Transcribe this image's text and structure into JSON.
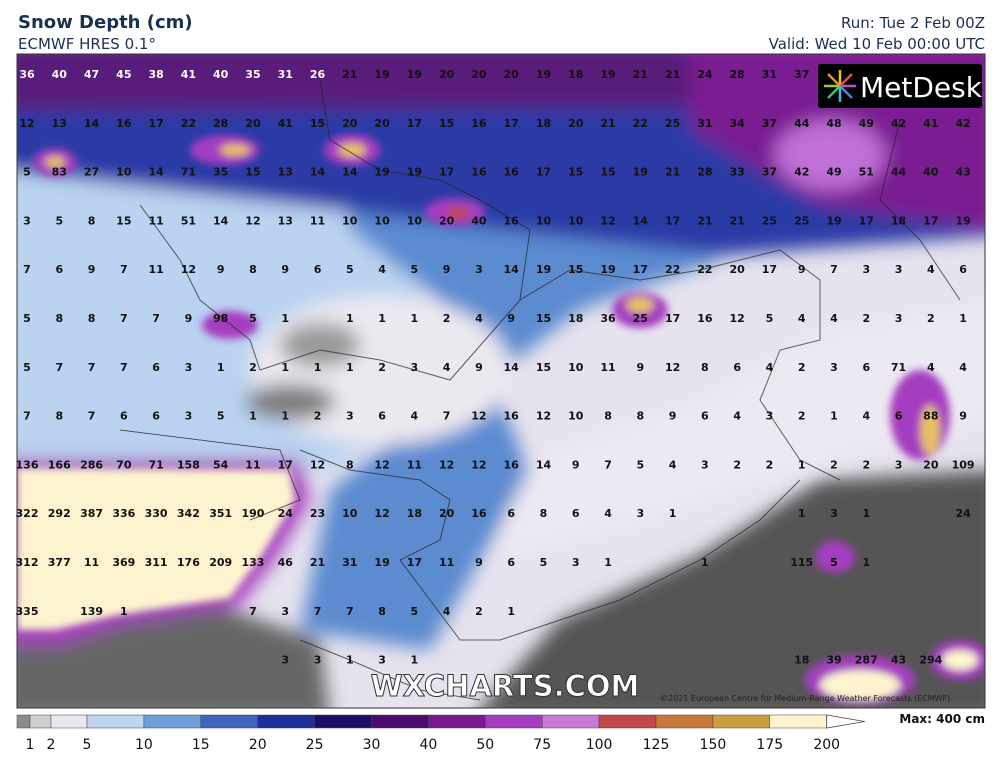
{
  "header": {
    "title": "Snow Depth (cm)",
    "subtitle": "ECMWF HRES 0.1°",
    "run": "Run: Tue 2 Feb 00Z",
    "valid": "Valid: Wed 10 Feb 00:00 UTC"
  },
  "logo": "MetDesk",
  "watermark": "WXCHARTS.COM",
  "copyright": "©2021 European Centre for Medium-Range Weather Forecasts (ECMWF)",
  "map": {
    "grid": [
      [
        36,
        40,
        47,
        45,
        38,
        41,
        40,
        35,
        31,
        26,
        21,
        19,
        19,
        20,
        20,
        20,
        19,
        18,
        19,
        21,
        21,
        24,
        28,
        31,
        37,
        null,
        null,
        null,
        null,
        null
      ],
      [
        12,
        13,
        14,
        16,
        17,
        22,
        28,
        20,
        41,
        15,
        20,
        20,
        17,
        15,
        16,
        17,
        18,
        20,
        21,
        22,
        25,
        31,
        34,
        37,
        44,
        48,
        49,
        42,
        41,
        42
      ],
      [
        5,
        83,
        27,
        10,
        14,
        71,
        35,
        15,
        13,
        14,
        14,
        19,
        19,
        17,
        16,
        16,
        17,
        15,
        15,
        19,
        21,
        28,
        33,
        37,
        42,
        49,
        51,
        44,
        40,
        43
      ],
      [
        3,
        5,
        8,
        15,
        11,
        51,
        14,
        12,
        13,
        11,
        10,
        10,
        10,
        20,
        40,
        16,
        10,
        10,
        12,
        14,
        17,
        21,
        21,
        25,
        25,
        19,
        17,
        18,
        17,
        19
      ],
      [
        7,
        6,
        9,
        7,
        11,
        12,
        9,
        8,
        9,
        6,
        5,
        4,
        5,
        9,
        3,
        14,
        19,
        15,
        19,
        17,
        22,
        22,
        20,
        17,
        9,
        7,
        3,
        3,
        4,
        6
      ],
      [
        5,
        8,
        8,
        7,
        7,
        9,
        98,
        5,
        1,
        null,
        1,
        1,
        1,
        2,
        4,
        9,
        15,
        18,
        36,
        25,
        17,
        16,
        12,
        5,
        4,
        4,
        2,
        3,
        2,
        1
      ],
      [
        5,
        7,
        7,
        7,
        6,
        3,
        1,
        2,
        1,
        1,
        1,
        2,
        3,
        4,
        9,
        14,
        15,
        10,
        11,
        9,
        12,
        8,
        6,
        4,
        2,
        3,
        6,
        71,
        4,
        4
      ],
      [
        7,
        8,
        7,
        6,
        6,
        3,
        5,
        1,
        1,
        2,
        3,
        6,
        4,
        7,
        12,
        16,
        12,
        10,
        8,
        8,
        9,
        6,
        4,
        3,
        2,
        1,
        4,
        6,
        88,
        9
      ],
      [
        136,
        166,
        286,
        70,
        71,
        158,
        54,
        11,
        17,
        12,
        8,
        12,
        11,
        12,
        12,
        16,
        14,
        9,
        7,
        5,
        4,
        3,
        2,
        2,
        1,
        2,
        2,
        3,
        20,
        109
      ],
      [
        322,
        292,
        387,
        336,
        330,
        342,
        351,
        190,
        24,
        23,
        10,
        12,
        18,
        20,
        16,
        6,
        8,
        6,
        4,
        3,
        1,
        null,
        null,
        null,
        1,
        3,
        1,
        null,
        null,
        24
      ],
      [
        312,
        377,
        11,
        369,
        311,
        176,
        209,
        133,
        46,
        21,
        31,
        19,
        17,
        11,
        9,
        6,
        5,
        3,
        1,
        null,
        null,
        1,
        null,
        null,
        115,
        5,
        1,
        null,
        null,
        null
      ],
      [
        335,
        null,
        139,
        1,
        null,
        null,
        null,
        7,
        3,
        7,
        7,
        8,
        5,
        4,
        2,
        1,
        null,
        null,
        null,
        null,
        null,
        null,
        null,
        null,
        null,
        null,
        null,
        null,
        null,
        null
      ],
      [
        null,
        null,
        null,
        null,
        null,
        null,
        null,
        null,
        3,
        3,
        1,
        3,
        1,
        null,
        null,
        null,
        null,
        null,
        null,
        null,
        null,
        null,
        null,
        null,
        18,
        39,
        287,
        43,
        294,
        null
      ]
    ]
  },
  "colorbar": {
    "labels": [
      1,
      2,
      5,
      10,
      15,
      20,
      25,
      30,
      40,
      50,
      75,
      100,
      125,
      150,
      175,
      200
    ],
    "colors": [
      "#8c8c8c",
      "#cfcfcf",
      "#ebe7f2",
      "#bcd6f2",
      "#6f9fd8",
      "#3f64c0",
      "#1f2f9a",
      "#1c0f6a",
      "#4a0c6e",
      "#7a1890",
      "#a53cc0",
      "#c878d8",
      "#c04848",
      "#c8783c",
      "#c8a040",
      "#fdf4cf"
    ],
    "max_label": "Max: 400 cm"
  }
}
